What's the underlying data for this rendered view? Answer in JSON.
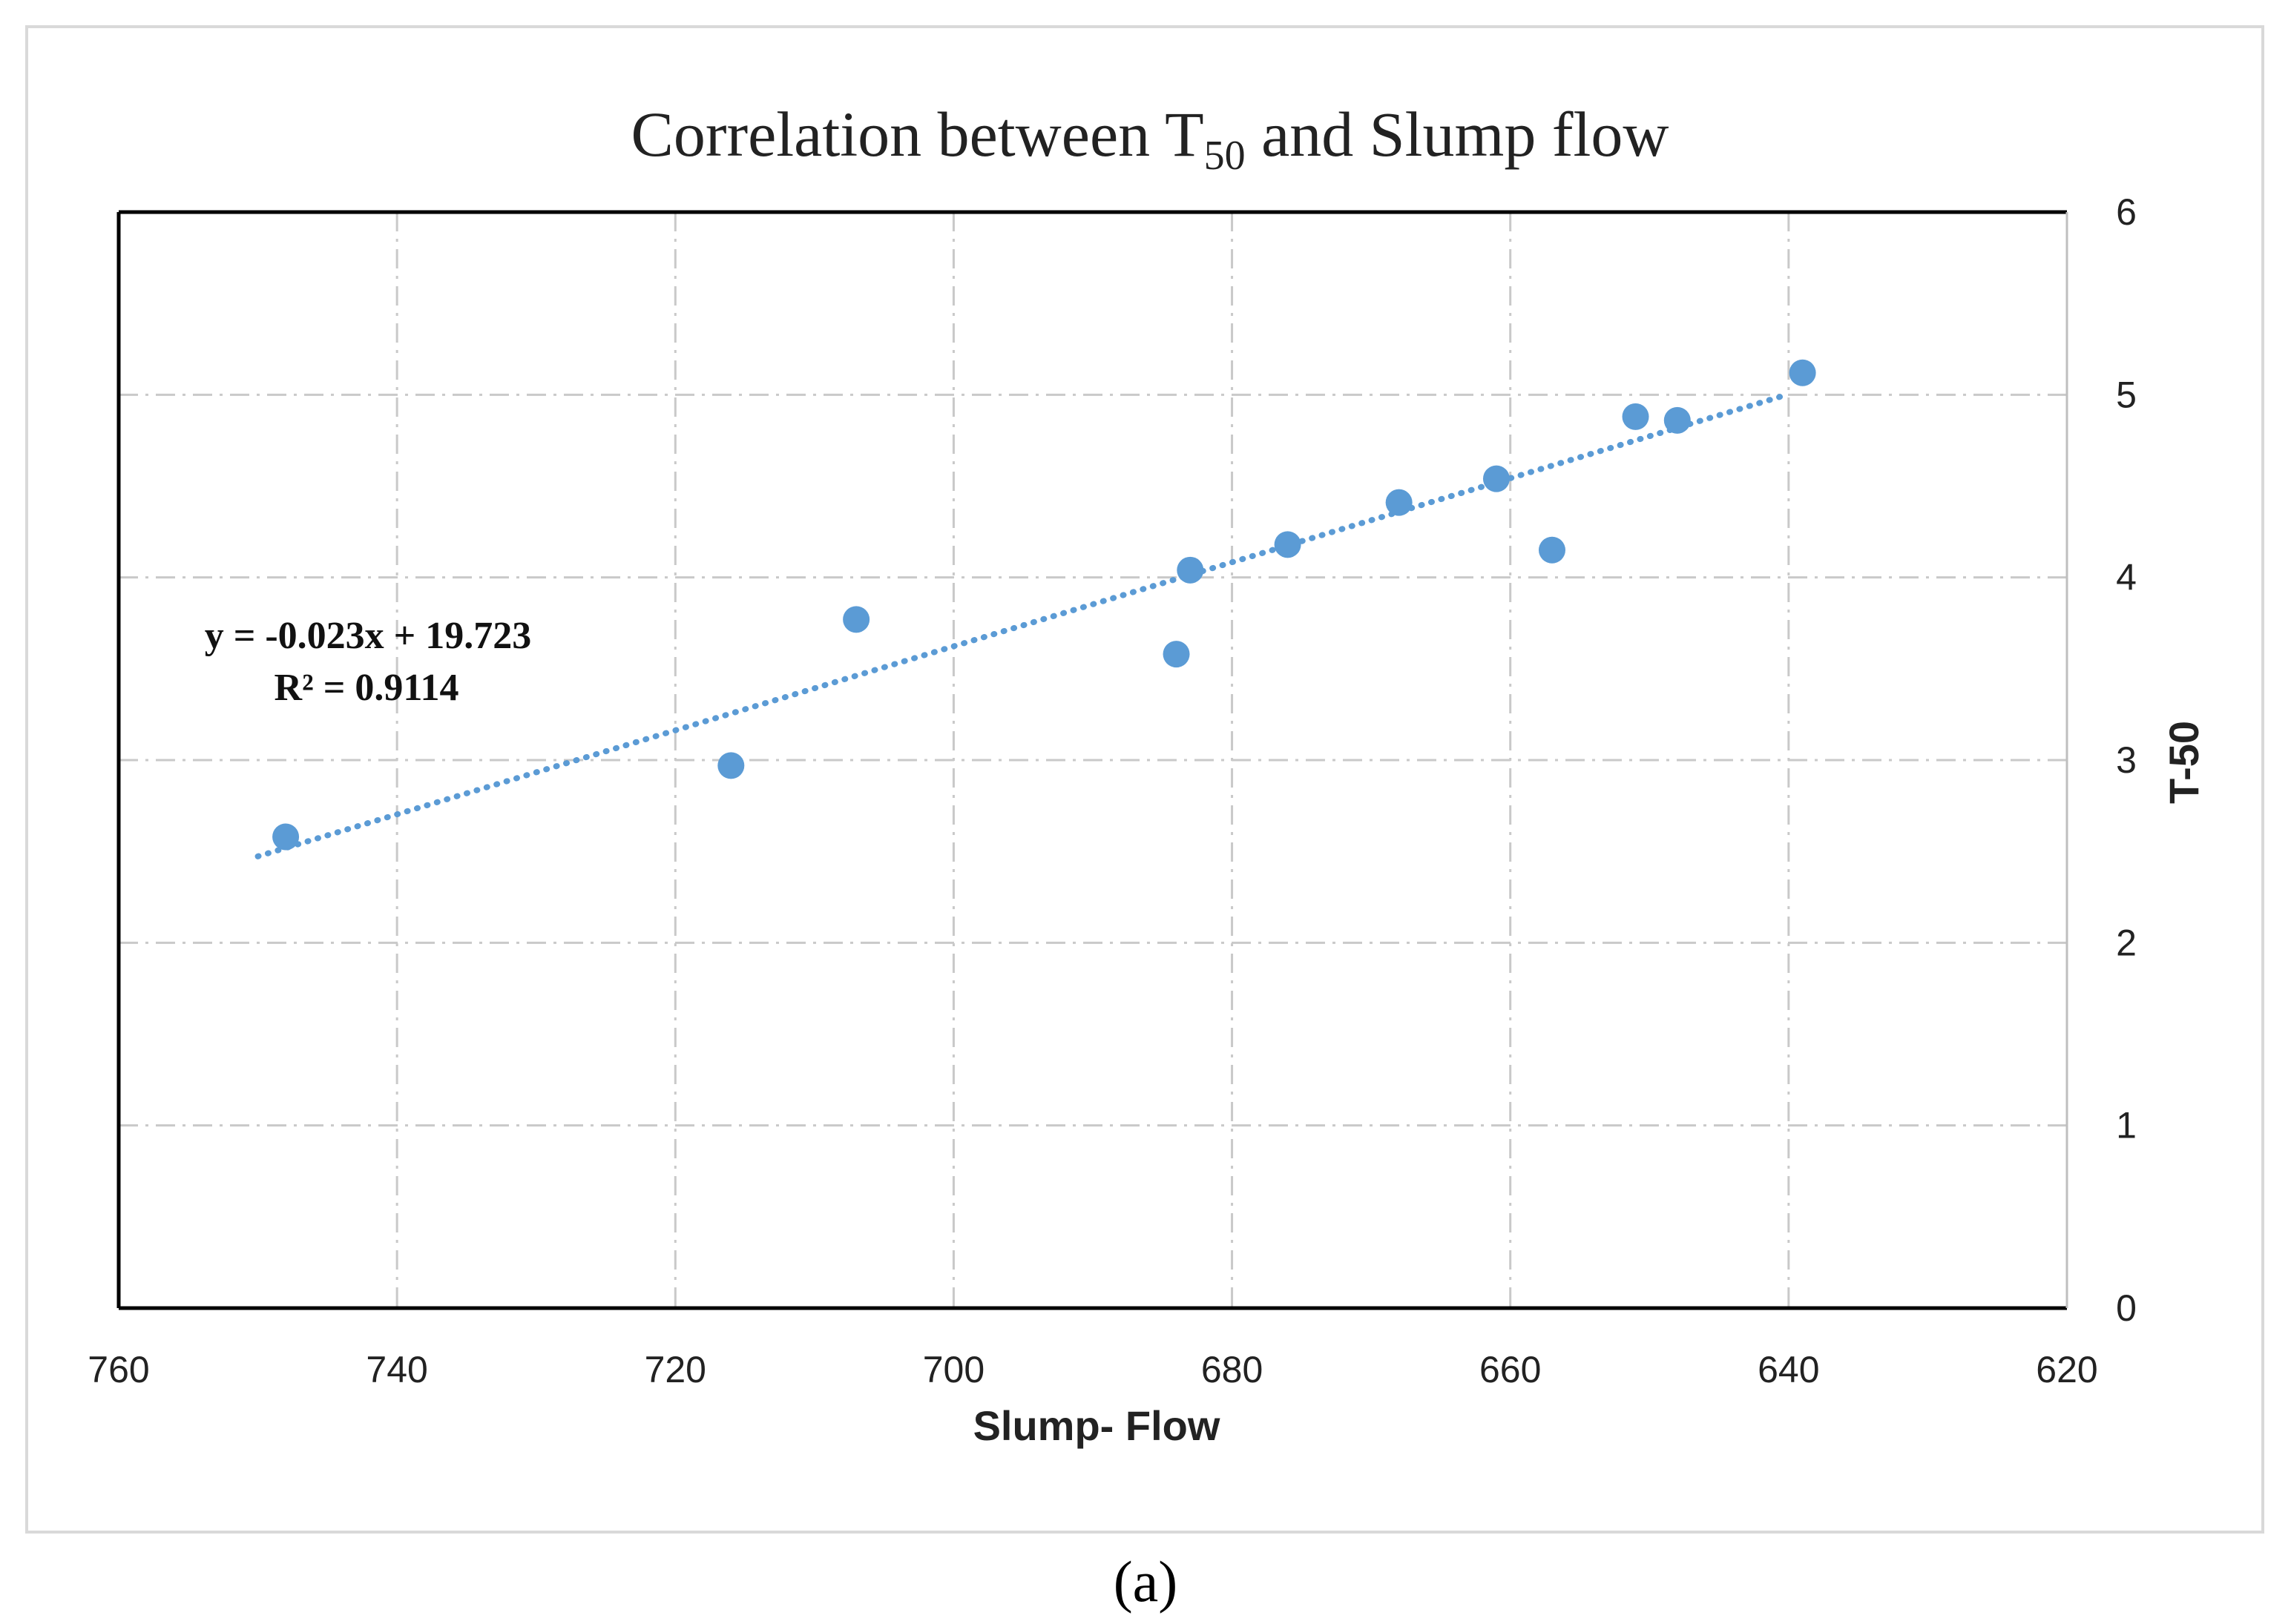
{
  "chart_data": {
    "type": "scatter",
    "title": {
      "prefix": "Correlation  between  T",
      "subscript": "50",
      "suffix": " and Slump flow"
    },
    "xlabel": "Slump- Flow",
    "ylabel": "T-50",
    "xlim": [
      760,
      620
    ],
    "ylim": [
      0,
      6
    ],
    "x_reversed": true,
    "y_axis_position": "right",
    "grid": true,
    "x_ticks": [
      760,
      740,
      720,
      700,
      680,
      660,
      640,
      620
    ],
    "y_ticks": [
      0,
      1,
      2,
      3,
      4,
      5,
      6
    ],
    "series": [
      {
        "name": "T-50",
        "color": "#5b9bd5",
        "x": [
          748,
          716,
          707,
          684,
          683,
          676,
          668,
          661,
          657,
          651,
          648,
          639
        ],
        "y": [
          2.58,
          2.97,
          3.77,
          3.58,
          4.04,
          4.18,
          4.41,
          4.54,
          4.15,
          4.88,
          4.86,
          5.12
        ]
      }
    ],
    "trendline": {
      "type": "linear",
      "slope": -0.023,
      "intercept": 19.723,
      "x_range": [
        750,
        640
      ],
      "color": "#5b9bd5",
      "equation_label": "y = -0.023x + 19.723",
      "r2_label": "R² = 0.9114"
    }
  },
  "caption": "(a)"
}
